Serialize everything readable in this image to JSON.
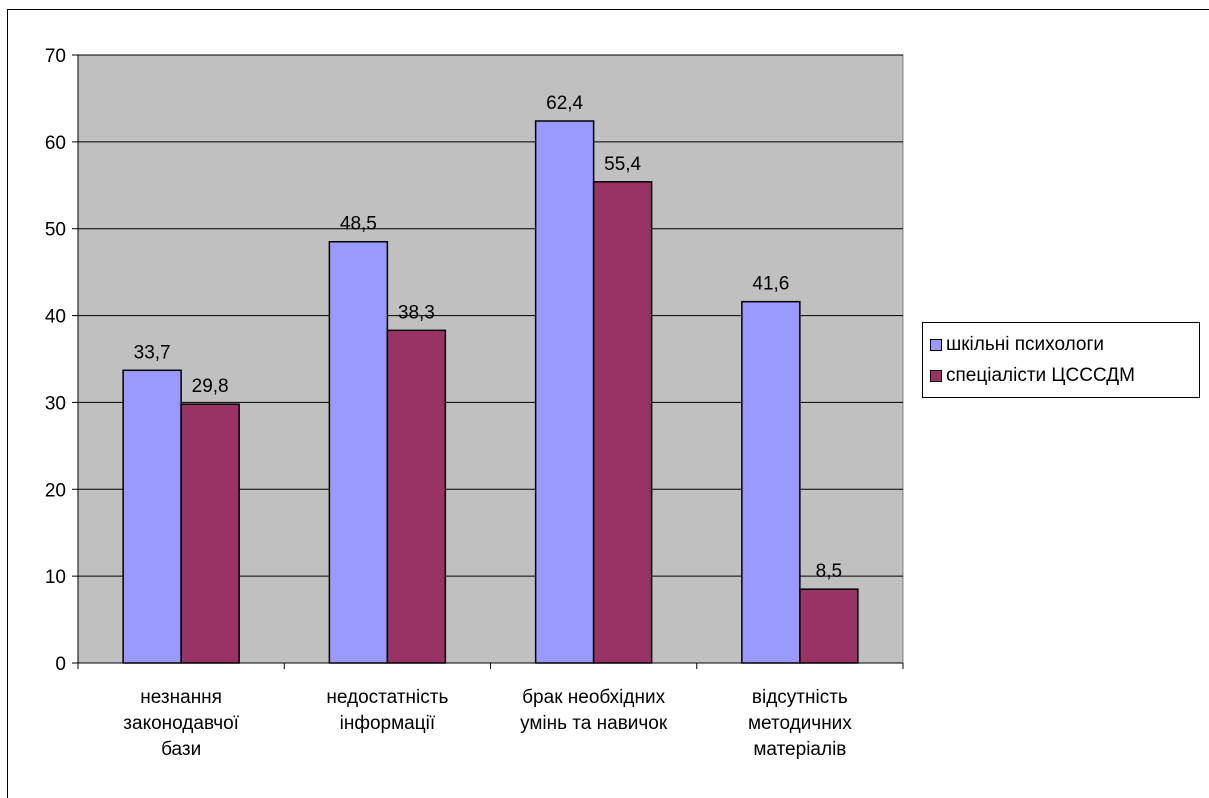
{
  "chart_data": {
    "type": "bar",
    "categories": [
      [
        "незнання",
        "законодавчої",
        "бази"
      ],
      [
        "недостатність",
        "інформації"
      ],
      [
        "брак необхідних",
        "умінь та навичок"
      ],
      [
        "відсутність",
        "методичних",
        "матеріалів"
      ]
    ],
    "series": [
      {
        "name": "шкільні психологи",
        "values": [
          33.7,
          48.5,
          62.4,
          41.6
        ],
        "labels": [
          "33,7",
          "48,5",
          "62,4",
          "41,6"
        ],
        "color": "#9999ff"
      },
      {
        "name": "спеціалісти ЦСССДМ",
        "values": [
          29.8,
          38.3,
          55.4,
          8.5
        ],
        "labels": [
          "29,8",
          "38,3",
          "55,4",
          "8,5"
        ],
        "color": "#993366"
      }
    ],
    "ylim": [
      0,
      70
    ],
    "yticks": [
      0,
      10,
      20,
      30,
      40,
      50,
      60,
      70
    ],
    "grid": true,
    "plot_background": "#c0c0c0",
    "legend_position": "right",
    "title": "",
    "xlabel": "",
    "ylabel": ""
  }
}
